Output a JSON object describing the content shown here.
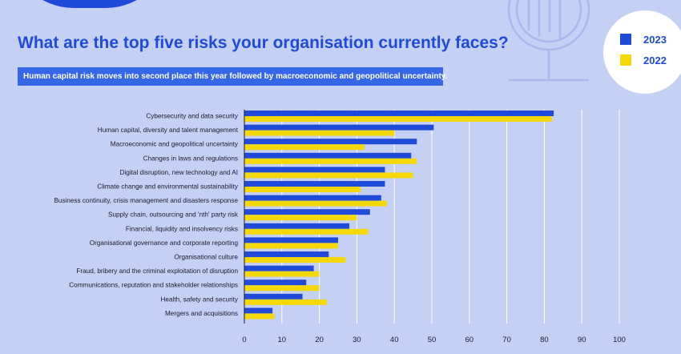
{
  "title": "What are the top five risks your organisation currently faces?",
  "subtitle": "Human capital risk moves into second place this year followed by macroeconomic and geopolitical uncertainty.",
  "colors": {
    "series_2023": "#1f4bd8",
    "series_2022": "#f5d80a",
    "background": "#c5d0f5"
  },
  "legend": [
    {
      "label": "2023",
      "color": "#1f4bd8"
    },
    {
      "label": "2022",
      "color": "#f5d80a"
    }
  ],
  "chart_data": {
    "type": "bar",
    "orientation": "horizontal",
    "categories": [
      "Cybersecurity and data security",
      "Human capital, diversity and talent management",
      "Macroeconomic and geopolitical uncertainty",
      "Changes in laws and regulations",
      "Digital disruption, new technology and AI",
      "Climate change and environmental sustainability",
      "Business continuity, crisis management and disasters response",
      "Supply chain, outsourcing and 'nth' party risk",
      "Financial, liquidity and insolvency risks",
      "Organisational governance and corporate reporting",
      "Organisational culture",
      "Fraud, bribery and the criminal exploitation of disruption",
      "Communications, reputation and stakeholder relationships",
      "Health, safety and security",
      "Mergers and acquisitions"
    ],
    "series": [
      {
        "name": "2023",
        "values": [
          82.5,
          50.5,
          46,
          44.5,
          37.5,
          37.5,
          36.5,
          33.5,
          28,
          25,
          22.5,
          18.5,
          16.5,
          15.5,
          7.5
        ]
      },
      {
        "name": "2022",
        "values": [
          82,
          40,
          32,
          46,
          45,
          31,
          38,
          30,
          33,
          25,
          27,
          20,
          20,
          22,
          8
        ]
      }
    ],
    "xlim": [
      0,
      100
    ],
    "xticks": [
      0,
      10,
      20,
      30,
      40,
      50,
      60,
      70,
      80,
      90,
      100
    ],
    "grid": true,
    "legend_position": "top-right"
  }
}
